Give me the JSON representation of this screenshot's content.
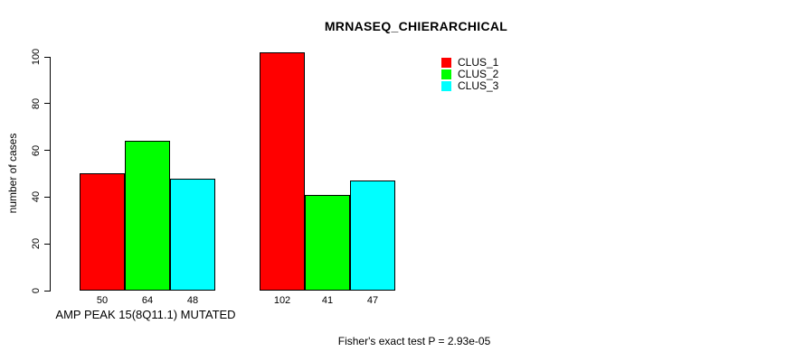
{
  "chart_data": {
    "type": "bar",
    "title": "MRNASEQ_CHIERARCHICAL",
    "ylabel": "number of cases",
    "xlabel": "AMP PEAK 15(8Q11.1) MUTATED",
    "footer": "Fisher's exact test P = 2.93e-05",
    "yticks": [
      0,
      20,
      40,
      60,
      80,
      100
    ],
    "ylim": [
      0,
      100
    ],
    "grid": false,
    "legend_position": "top-right",
    "categories": [
      "AMP PEAK 15(8Q11.1) MUTATED",
      ""
    ],
    "series": [
      {
        "name": "CLUS_1",
        "color": "#ff0000",
        "values": [
          50,
          102
        ]
      },
      {
        "name": "CLUS_2",
        "color": "#00ff00",
        "values": [
          64,
          41
        ]
      },
      {
        "name": "CLUS_3",
        "color": "#00ffff",
        "values": [
          48,
          47
        ]
      }
    ]
  }
}
